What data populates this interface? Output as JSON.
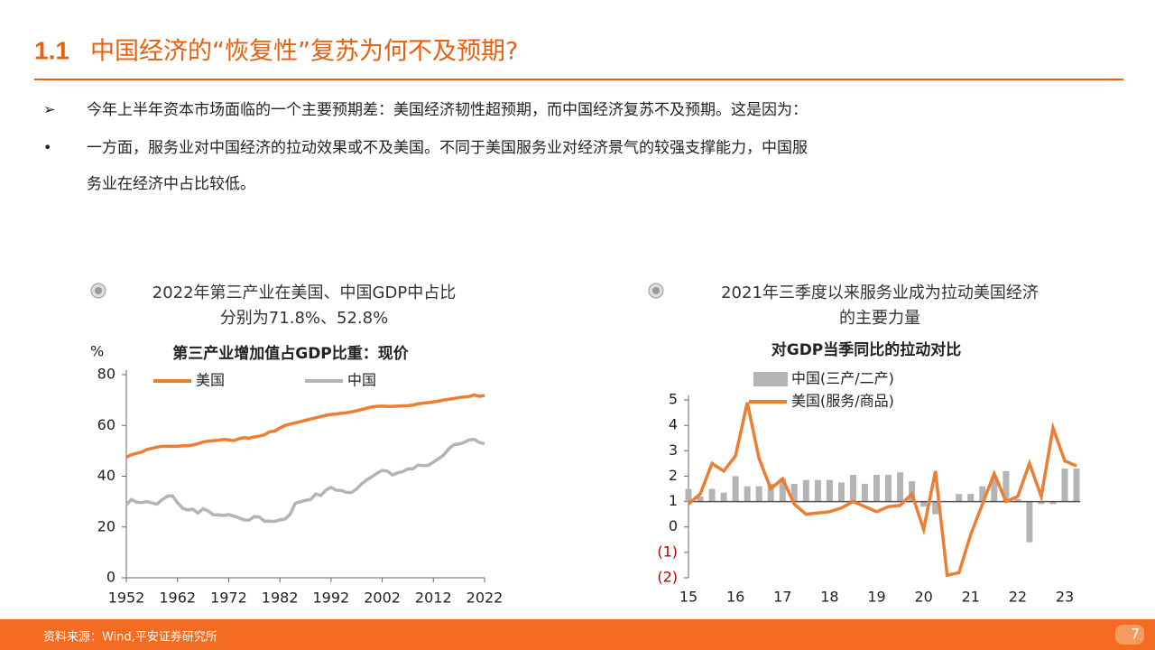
{
  "header": {
    "number": "1.1",
    "title": "中国经济的“恢复性”复苏为何不及预期?"
  },
  "bullets": [
    [
      "今年上半年资本市场面临的一个主要预期差：美国经济韧性超预期，而中国经济复苏不及预期。这是因为："
    ],
    [
      "一方面，服务业对中国经济的拉动效果或不及美国。不同于美国服务业对经济景气的较强支撑能力，中国服",
      "务业在经济中占比较低。"
    ]
  ],
  "chart_data": [
    {
      "type": "line",
      "caption": [
        "2022年第三产业在美国、中国GDP中占比",
        "分别为71.8%、52.8%"
      ],
      "title": "第三产业增加值占GDP比重：现价",
      "y_label": "%",
      "x": [
        1952,
        1953,
        1954,
        1955,
        1956,
        1957,
        1958,
        1959,
        1960,
        1961,
        1962,
        1963,
        1964,
        1965,
        1966,
        1967,
        1968,
        1969,
        1970,
        1971,
        1972,
        1973,
        1974,
        1975,
        1976,
        1977,
        1978,
        1979,
        1980,
        1981,
        1982,
        1983,
        1984,
        1985,
        1986,
        1987,
        1988,
        1989,
        1990,
        1991,
        1992,
        1993,
        1994,
        1995,
        1996,
        1997,
        1998,
        1999,
        2000,
        2001,
        2002,
        2003,
        2004,
        2005,
        2006,
        2007,
        2008,
        2009,
        2010,
        2011,
        2012,
        2013,
        2014,
        2015,
        2016,
        2017,
        2018,
        2019,
        2020,
        2021,
        2022
      ],
      "series": [
        {
          "name": "美国",
          "color": "#ed7d31",
          "values": [
            47.5,
            48.5,
            49,
            49.5,
            50.5,
            51,
            51.5,
            51.8,
            51.8,
            51.8,
            51.8,
            52,
            52,
            52.3,
            52.8,
            53.5,
            53.8,
            54,
            54.2,
            54.5,
            54.3,
            54,
            54.8,
            55.2,
            55,
            55.5,
            55.8,
            56.3,
            57.5,
            57.8,
            59,
            60,
            60.5,
            61,
            61.5,
            62,
            62.5,
            63,
            63.5,
            64,
            64.3,
            64.5,
            64.8,
            65,
            65.3,
            65.8,
            66.3,
            66.8,
            67.3,
            67.5,
            67.6,
            67.5,
            67.5,
            67.6,
            67.7,
            67.8,
            68,
            68.5,
            68.8,
            69,
            69.3,
            69.6,
            70,
            70.3,
            70.6,
            71,
            71.2,
            71.4,
            72,
            71.5,
            71.8
          ]
        },
        {
          "name": "中国",
          "color": "#b4b4b4",
          "values": [
            28.7,
            30.8,
            29.8,
            29.6,
            30,
            29.5,
            29,
            30.8,
            32.1,
            32.3,
            29.6,
            27.4,
            26.7,
            27,
            25.5,
            27.2,
            26.3,
            24.8,
            24.8,
            24.5,
            24.9,
            24.3,
            23.6,
            22.8,
            22.7,
            24.1,
            23.9,
            22.3,
            22.3,
            22.2,
            22.8,
            23.1,
            25,
            29.3,
            29.9,
            30.5,
            30.8,
            33,
            32.4,
            34.5,
            35.6,
            34.5,
            34.4,
            33.7,
            33.6,
            35,
            37,
            38.6,
            39.8,
            41.2,
            42.3,
            42,
            40.5,
            41.3,
            41.8,
            42.9,
            42.9,
            44.4,
            44.2,
            44.3,
            45.5,
            46.9,
            48.3,
            50.8,
            52.4,
            52.7,
            53.3,
            54.3,
            54.5,
            53.3,
            52.8
          ]
        }
      ],
      "xlim": [
        1952,
        2022
      ],
      "xticks": [
        1952,
        1962,
        1972,
        1982,
        1992,
        2002,
        2012,
        2022
      ],
      "ylim": [
        0,
        80
      ],
      "yticks": [
        0,
        20,
        40,
        60,
        80
      ],
      "grid": false
    },
    {
      "type": "combo",
      "caption": [
        "2021年三季度以来服务业成为拉动美国经济",
        "的主要力量"
      ],
      "title": "对GDP当季同比的拉动对比",
      "categories": [
        "15",
        null,
        null,
        null,
        "16",
        null,
        null,
        null,
        "17",
        null,
        null,
        null,
        "18",
        null,
        null,
        null,
        "19",
        null,
        null,
        null,
        "20",
        null,
        null,
        null,
        "21",
        null,
        null,
        null,
        "22",
        null,
        null,
        null,
        "23",
        null
      ],
      "series": [
        {
          "name": "中国(三产/二产)",
          "type": "bar",
          "color": "#b4b4b4",
          "values": [
            1.5,
            1.2,
            1.5,
            1.35,
            2.0,
            1.6,
            1.6,
            1.7,
            1.9,
            1.7,
            1.85,
            1.85,
            1.85,
            1.75,
            2.05,
            1.7,
            2.05,
            2.05,
            2.15,
            1.8,
            0.8,
            0.5,
            1.0,
            1.3,
            1.3,
            1.6,
            2.0,
            2.2,
            1.1,
            -0.6,
            0.9,
            0.9,
            2.3,
            2.3
          ]
        },
        {
          "name": "美国(服务/商品)",
          "type": "line",
          "color": "#ed7d31",
          "values": [
            0.9,
            1.3,
            2.5,
            2.2,
            2.8,
            4.9,
            2.7,
            1.5,
            1.9,
            0.9,
            0.5,
            0.55,
            0.6,
            0.75,
            1.0,
            0.8,
            0.6,
            0.8,
            0.85,
            1.3,
            -0.1,
            2.2,
            -1.9,
            -1.8,
            -0.3,
            0.9,
            2.1,
            1.0,
            1.2,
            2.5,
            1.2,
            3.9,
            2.6,
            2.4
          ]
        }
      ],
      "ylim": [
        -2,
        5
      ],
      "yticks": [
        {
          "value": -2,
          "label": "(2)"
        },
        {
          "value": -1,
          "label": "(1)"
        },
        0,
        1,
        2,
        3,
        4,
        5
      ],
      "axis_crossing": 1,
      "grid": false
    }
  ],
  "footer": {
    "source": "资料来源：Wind,平安证券研究所",
    "page": 7
  }
}
